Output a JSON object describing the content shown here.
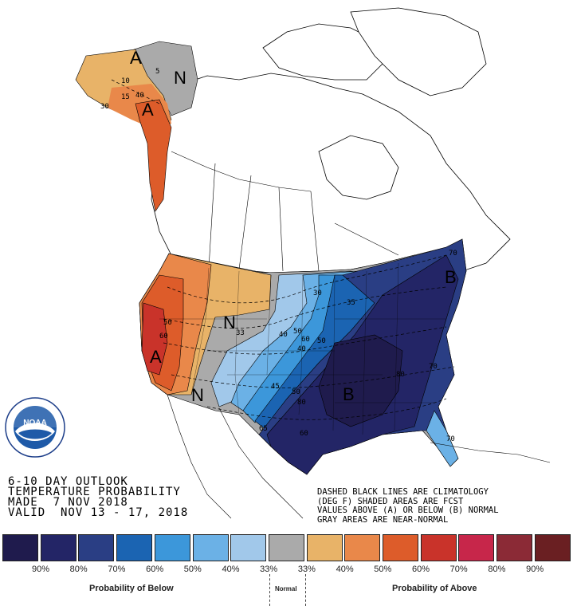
{
  "outlook": {
    "line1": "6-10 DAY OUTLOOK",
    "line2": "TEMPERATURE PROBABILITY",
    "line3": "MADE  7 NOV 2018",
    "line4": "VALID  NOV 13 - 17, 2018"
  },
  "notes": {
    "line1": "DASHED BLACK LINES ARE CLIMATOLOGY",
    "line2": "(DEG F) SHADED AREAS ARE FCST",
    "line3": "VALUES ABOVE (A) OR BELOW (B) NORMAL",
    "line4": "GRAY AREAS ARE NEAR-NORMAL"
  },
  "logo": {
    "text": "NOAA"
  },
  "map_labels": {
    "ak_a_top": "A",
    "ak_n": "N",
    "ak_a": "A",
    "west_a": "A",
    "west_n": "N",
    "plains_n": "N",
    "east_b": "B",
    "ne_b": "B"
  },
  "contour_labels": [
    "10",
    "5",
    "15",
    "40",
    "30",
    "50",
    "60",
    "30",
    "35",
    "33",
    "40",
    "50",
    "60",
    "50",
    "40",
    "45",
    "50",
    "70",
    "80",
    "80",
    "70",
    "60",
    "65",
    "70"
  ],
  "legend": {
    "below_title": "Probability of Below",
    "normal_title": "Normal",
    "above_title": "Probability of Above",
    "items": [
      {
        "color": "#1f1b4d",
        "label": "90%"
      },
      {
        "color": "#232566",
        "label": "80%"
      },
      {
        "color": "#2a3e84",
        "label": "70%"
      },
      {
        "color": "#1b64b2",
        "label": "60%"
      },
      {
        "color": "#3c97da",
        "label": "50%"
      },
      {
        "color": "#6bb1e6",
        "label": "40%"
      },
      {
        "color": "#a1c8ea",
        "label": "33%"
      },
      {
        "color": "#aaaaaa",
        "label": "33%"
      },
      {
        "color": "#e8b368",
        "label": "40%"
      },
      {
        "color": "#e9884a",
        "label": "50%"
      },
      {
        "color": "#dd5c2a",
        "label": "60%"
      },
      {
        "color": "#c9332a",
        "label": "70%"
      },
      {
        "color": "#c7264a",
        "label": "80%"
      },
      {
        "color": "#8b2a36",
        "label": "90%"
      },
      {
        "color": "#6a1f22",
        "label": ""
      }
    ]
  }
}
